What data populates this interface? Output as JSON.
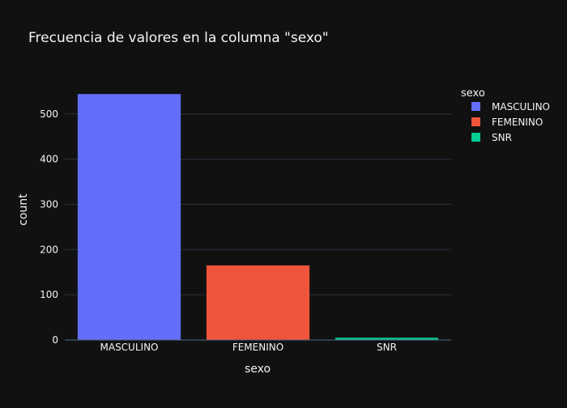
{
  "chart_data": {
    "type": "bar",
    "title": "Frecuencia de valores en la columna \"sexo\"",
    "xlabel": "sexo",
    "ylabel": "count",
    "categories": [
      "MASCULINO",
      "FEMENINO",
      "SNR"
    ],
    "series": [
      {
        "name": "MASCULINO",
        "category": "MASCULINO",
        "value": 544,
        "color": "#636efa"
      },
      {
        "name": "FEMENINO",
        "category": "FEMENINO",
        "value": 165,
        "color": "#ef553b"
      },
      {
        "name": "SNR",
        "category": "SNR",
        "value": 5,
        "color": "#00cc96"
      }
    ],
    "ylim": [
      0,
      573
    ],
    "yticks": [
      0,
      100,
      200,
      300,
      400,
      500
    ],
    "legend_title": "sexo",
    "legend_position": "top-right",
    "grid": true
  },
  "colors": {
    "background": "#111111",
    "grid": "#283442",
    "text": "#f2f5fa",
    "axis_line": "#506784"
  }
}
